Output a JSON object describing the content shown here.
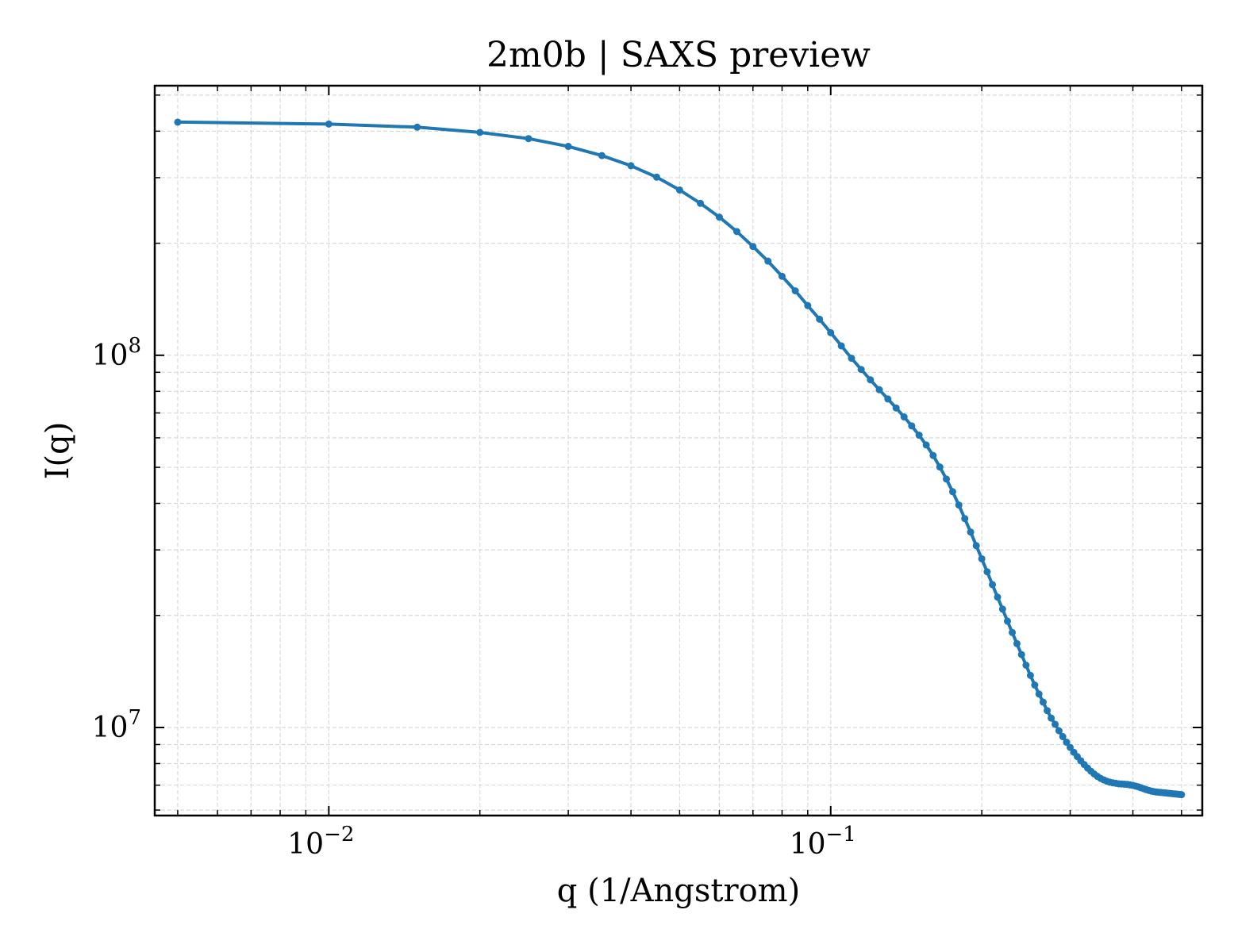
{
  "chart_data": {
    "type": "line",
    "title": "2m0b | SAXS preview",
    "xlabel": "q (1/Angstrom)",
    "ylabel": "I(q)",
    "xscale": "log",
    "yscale": "log",
    "xlim": [
      0.0045,
      0.55
    ],
    "ylim": [
      5800000,
      530000000
    ],
    "grid": true,
    "x_major_ticks": [
      {
        "value": 0.01,
        "base": "10",
        "exp": "−2"
      },
      {
        "value": 0.1,
        "base": "10",
        "exp": "−1"
      }
    ],
    "y_major_ticks": [
      {
        "value": 10000000,
        "base": "10",
        "exp": "7"
      },
      {
        "value": 100000000,
        "base": "10",
        "exp": "8"
      }
    ],
    "series_color": "#1f77b4",
    "series": [
      {
        "x": [
          0.005,
          0.01,
          0.015,
          0.02,
          0.025,
          0.03,
          0.035,
          0.04,
          0.045,
          0.05,
          0.055,
          0.06,
          0.065,
          0.07,
          0.075,
          0.08,
          0.085,
          0.09,
          0.095,
          0.1,
          0.105,
          0.11,
          0.115,
          0.12,
          0.125,
          0.13,
          0.135,
          0.14,
          0.145,
          0.15,
          0.155,
          0.16,
          0.165,
          0.17,
          0.175,
          0.18,
          0.185,
          0.19,
          0.195,
          0.2,
          0.205,
          0.21,
          0.215,
          0.22,
          0.225,
          0.23,
          0.235,
          0.24,
          0.245,
          0.25,
          0.255,
          0.26,
          0.265,
          0.27,
          0.275,
          0.28,
          0.285,
          0.29,
          0.295,
          0.3,
          0.305,
          0.31,
          0.315,
          0.32,
          0.325,
          0.33,
          0.335,
          0.34,
          0.345,
          0.35,
          0.355,
          0.36,
          0.365,
          0.37,
          0.375,
          0.38,
          0.385,
          0.39,
          0.395,
          0.4,
          0.405,
          0.41,
          0.415,
          0.42,
          0.425,
          0.43,
          0.435,
          0.44,
          0.445,
          0.45,
          0.455,
          0.46,
          0.465,
          0.47,
          0.475,
          0.48,
          0.485,
          0.49,
          0.495,
          0.5
        ],
        "y": [
          423000000,
          418000000,
          410000000,
          397000000,
          382000000,
          364000000,
          344000000,
          323000000,
          301000000,
          278000000,
          256000000,
          235000000,
          215000000,
          196000000,
          179000000,
          163000000,
          149000000,
          136000000,
          125000000,
          115000000,
          106000000,
          98200000,
          91600000,
          85900000,
          80800000,
          76300000,
          72200000,
          68300000,
          64600000,
          61000000,
          57400000,
          53800000,
          50100000,
          46500000,
          43000000,
          39600000,
          36400000,
          33500000,
          30800000,
          28400000,
          26200000,
          24200000,
          22400000,
          20800000,
          19300000,
          18000000,
          16800000,
          15700000,
          14700000,
          13800000,
          13000000,
          12300000,
          11700000,
          11100000,
          10600000,
          10200000,
          9800000,
          9450000,
          9130000,
          8840000,
          8580000,
          8350000,
          8140000,
          7950000,
          7780000,
          7630000,
          7500000,
          7390000,
          7300000,
          7230000,
          7170000,
          7130000,
          7100000,
          7080000,
          7060000,
          7050000,
          7040000,
          7030000,
          7010000,
          6990000,
          6960000,
          6930000,
          6890000,
          6850000,
          6810000,
          6780000,
          6750000,
          6730000,
          6710000,
          6700000,
          6690000,
          6680000,
          6670000,
          6660000,
          6650000,
          6640000,
          6630000,
          6620000,
          6610000,
          6600000
        ]
      }
    ]
  }
}
